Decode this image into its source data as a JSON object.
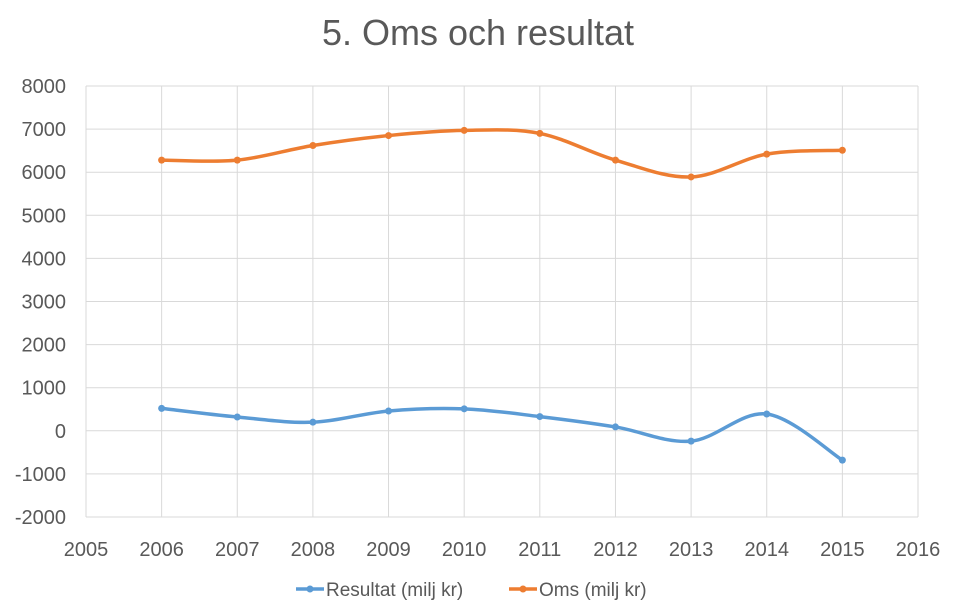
{
  "chart_data": {
    "type": "line",
    "title": "5. Oms och resultat",
    "xlabel": "",
    "ylabel": "",
    "xlim": [
      2005,
      2016
    ],
    "ylim": [
      -2000,
      8000
    ],
    "xticks": [
      2005,
      2006,
      2007,
      2008,
      2009,
      2010,
      2011,
      2012,
      2013,
      2014,
      2015,
      2016
    ],
    "yticks": [
      -2000,
      -1000,
      0,
      1000,
      2000,
      3000,
      4000,
      5000,
      6000,
      7000,
      8000
    ],
    "grid": true,
    "smooth": true,
    "legend_position": "bottom",
    "series": [
      {
        "name": "Resultat (milj kr)",
        "color": "#5B9BD5",
        "x": [
          2006,
          2007,
          2008,
          2009,
          2010,
          2011,
          2012,
          2013,
          2014,
          2015
        ],
        "values": [
          520,
          320,
          200,
          460,
          510,
          330,
          90,
          -240,
          390,
          -680
        ]
      },
      {
        "name": "Oms (milj kr)",
        "color": "#ED7D31",
        "x": [
          2006,
          2007,
          2008,
          2009,
          2010,
          2011,
          2012,
          2013,
          2014,
          2015
        ],
        "values": [
          6280,
          6280,
          6620,
          6850,
          6970,
          6900,
          6280,
          5890,
          6420,
          6510
        ]
      }
    ]
  }
}
